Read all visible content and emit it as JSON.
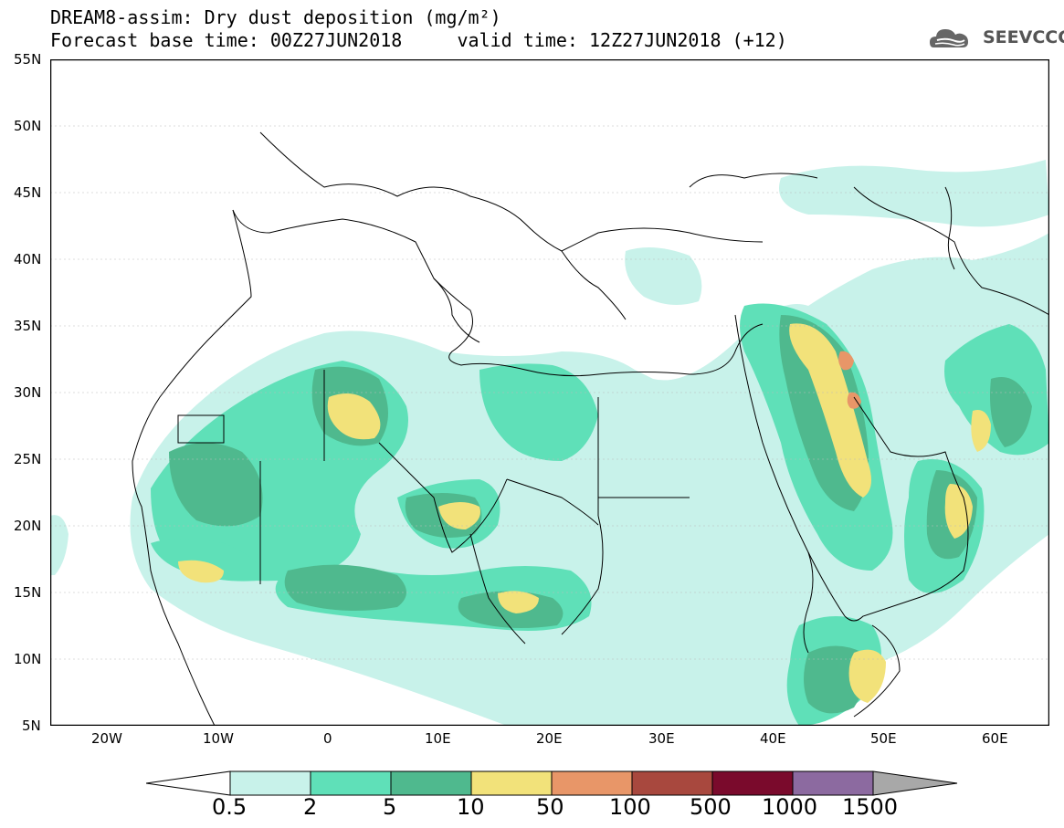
{
  "header": {
    "title_line1": "DREAM8-assim: Dry dust deposition (mg/m²)",
    "title_line2": "Forecast base time: 00Z27JUN2018     valid time: 12Z27JUN2018 (+12)"
  },
  "logo": {
    "text": "SEEVCCC",
    "icon": "cloud-icon"
  },
  "map": {
    "lat_labels": [
      "55N",
      "50N",
      "45N",
      "40N",
      "35N",
      "30N",
      "25N",
      "20N",
      "15N",
      "10N",
      "5N"
    ],
    "lon_labels": [
      "20W",
      "10W",
      "0",
      "10E",
      "20E",
      "30E",
      "40E",
      "50E",
      "60E"
    ]
  },
  "colorbar": {
    "levels": [
      "0.5",
      "2",
      "5",
      "10",
      "50",
      "100",
      "500",
      "1000",
      "1500"
    ],
    "colors": [
      "#c8f2ea",
      "#5fe0b8",
      "#4fb98e",
      "#f2e27a",
      "#e89668",
      "#a8483e",
      "#7a0a2c",
      "#8c6aa0",
      "#a8a8a8"
    ]
  }
}
